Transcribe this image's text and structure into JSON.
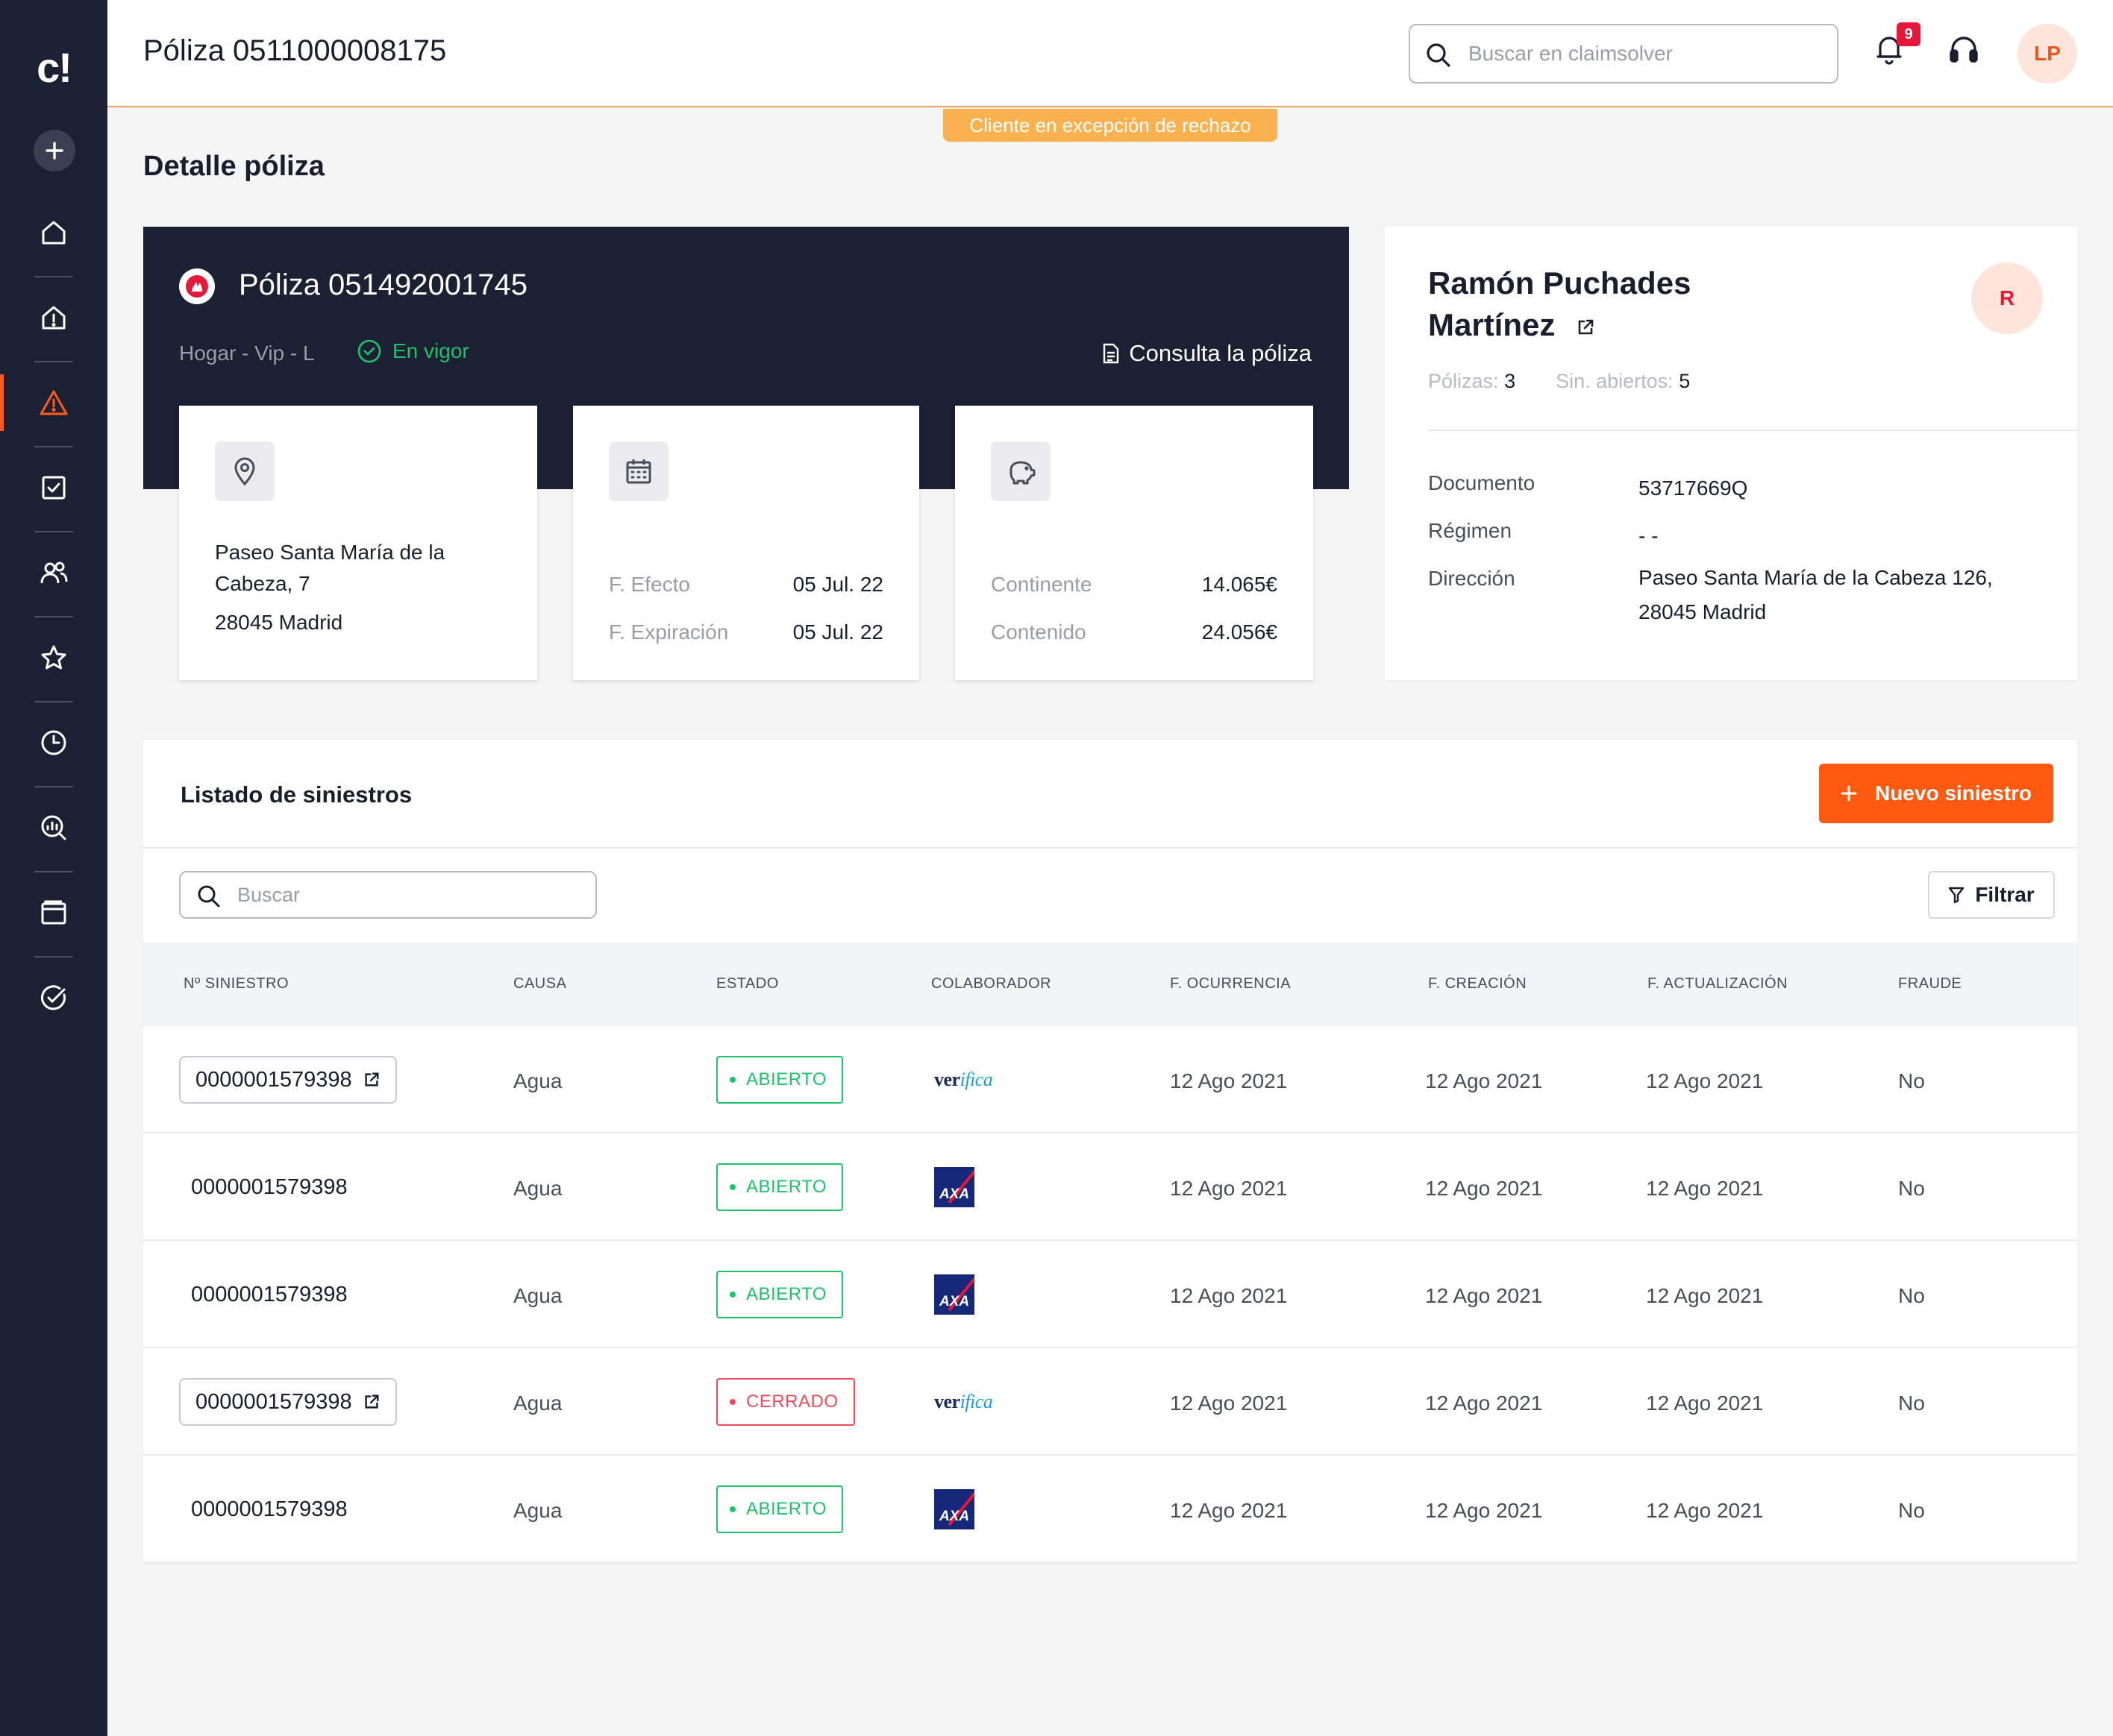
{
  "app": {
    "logo": "c!"
  },
  "sidebar": {
    "items": [
      {
        "icon": "home-icon"
      },
      {
        "icon": "home-alert-icon"
      },
      {
        "icon": "warning-icon",
        "active": true
      },
      {
        "icon": "task-check-icon"
      },
      {
        "icon": "users-icon"
      },
      {
        "icon": "star-icon"
      },
      {
        "icon": "clock-icon"
      },
      {
        "icon": "analytics-icon"
      },
      {
        "icon": "window-icon"
      },
      {
        "icon": "verified-icon"
      }
    ],
    "accent": "#ff5a1f"
  },
  "header": {
    "title": "Póliza 0511000008175",
    "search_placeholder": "Buscar en claimsolver",
    "notifications": "9",
    "user_initials": "LP"
  },
  "exception_banner": "Cliente en excepción de rechazo",
  "section_title": "Detalle póliza",
  "policy": {
    "name": "Póliza 051492001745",
    "type": "Hogar - Vip - L",
    "status": "En vigor",
    "consult_label": "Consulta la póliza",
    "address": {
      "line1": "Paseo Santa María de la",
      "line2": "Cabeza, 7",
      "line3": "28045 Madrid"
    },
    "dates": {
      "effect_label": "F. Efecto",
      "effect_value": "05 Jul. 22",
      "expiry_label": "F. Expiración",
      "expiry_value": "05 Jul. 22"
    },
    "coverage": {
      "container_label": "Continente",
      "container_value": "14.065€",
      "content_label": "Contenido",
      "content_value": "24.056€"
    }
  },
  "client": {
    "name_line1": "Ramón Puchades",
    "name_line2": "Martínez",
    "avatar": "R",
    "policies_label": "Pólizas:",
    "policies_value": "3",
    "open_label": "Sin. abiertos:",
    "open_value": "5",
    "document_label": "Documento",
    "document_value": "53717669Q",
    "regime_label": "Régimen",
    "regime_value": "- -",
    "address_label": "Dirección",
    "address_line1": "Paseo Santa María de la Cabeza 126,",
    "address_line2": "28045 Madrid"
  },
  "claims": {
    "title": "Listado de siniestros",
    "new_label": "Nuevo siniestro",
    "search_placeholder": "Buscar",
    "filter_label": "Filtrar",
    "columns": [
      "Nº SINIESTRO",
      "CAUSA",
      "ESTADO",
      "COLABORADOR",
      "F. OCURRENCIA",
      "F. CREACIÓN",
      "F. ACTUALIZACIÓN",
      "FRAUDE"
    ],
    "rows": [
      {
        "id": "0000001579398",
        "linked": true,
        "cause": "Agua",
        "status": "ABIERTO",
        "collaborator": "verifica",
        "occurred": "12 Ago 2021",
        "created": "12 Ago 2021",
        "updated": "12 Ago 2021",
        "fraud": "No"
      },
      {
        "id": "0000001579398",
        "linked": false,
        "cause": "Agua",
        "status": "ABIERTO",
        "collaborator": "axa",
        "occurred": "12 Ago 2021",
        "created": "12 Ago 2021",
        "updated": "12 Ago 2021",
        "fraud": "No"
      },
      {
        "id": "0000001579398",
        "linked": false,
        "cause": "Agua",
        "status": "ABIERTO",
        "collaborator": "axa",
        "occurred": "12 Ago 2021",
        "created": "12 Ago 2021",
        "updated": "12 Ago 2021",
        "fraud": "No"
      },
      {
        "id": "0000001579398",
        "linked": true,
        "cause": "Agua",
        "status": "CERRADO",
        "collaborator": "verifica",
        "occurred": "12 Ago 2021",
        "created": "12 Ago 2021",
        "updated": "12 Ago 2021",
        "fraud": "No"
      },
      {
        "id": "0000001579398",
        "linked": false,
        "cause": "Agua",
        "status": "ABIERTO",
        "collaborator": "axa",
        "occurred": "12 Ago 2021",
        "created": "12 Ago 2021",
        "updated": "12 Ago 2021",
        "fraud": "No"
      }
    ],
    "collaborator_labels": {
      "verifica_a": "ver",
      "verifica_b": "ifica",
      "axa": "AXA"
    },
    "status_colors": {
      "ABIERTO": "#1ec26b",
      "CERRADO": "#f04b5a"
    }
  }
}
